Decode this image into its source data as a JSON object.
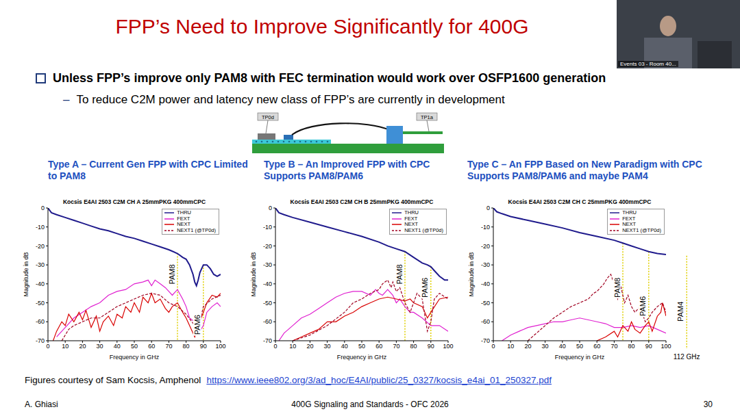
{
  "slide": {
    "title": "FPP’s Need to Improve Significantly for 400G",
    "bullet": "Unless FPP’s improve only PAM8 with FEC termination would work over OSFP1600 generation",
    "sub_bullet_marker": "–",
    "sub_bullet": "To reduce C2M power and latency new class of FPP’s are currently in development",
    "webcam_label": "Events 03 - Room 40...",
    "credit": "Figures courtesy of Sam Kocsis, Amphenol",
    "link": "https://www.ieee802.org/3/ad_hoc/E4AI/public/25_0327/kocsis_e4ai_01_250327.pdf",
    "author": "A. Ghiasi",
    "event": "400G Signaling and Standards - OFC 2026",
    "page": 30
  },
  "diagram": {
    "labels": [
      "TP0d",
      "TP1a"
    ]
  },
  "chart_data": [
    {
      "type": "line",
      "panel_title": "Type A – Current Gen FPP with CPC Limited to PAM8",
      "title": "Kocsis E4AI 2503 C2M CH A 25mmPKG 400mmCPC",
      "x_label": "Frequency in GHz",
      "y_label": "Magnitude in dB",
      "xlim": [
        0,
        100
      ],
      "xticks": [
        0,
        10,
        20,
        30,
        40,
        50,
        60,
        70,
        80,
        90,
        100
      ],
      "ylim": [
        -70,
        0
      ],
      "yticks": [
        -70,
        -60,
        -50,
        -40,
        -30,
        -20,
        -10,
        0
      ],
      "grid": false,
      "legend": "upper right",
      "series": [
        {
          "name": "THRU",
          "color": "#1f1a8c",
          "line_style": "solid",
          "x": [
            0,
            2,
            5,
            10,
            15,
            20,
            25,
            30,
            35,
            40,
            45,
            50,
            55,
            60,
            65,
            70,
            75,
            78,
            80,
            82,
            84,
            85,
            86,
            87,
            88,
            90,
            92,
            94,
            96,
            98,
            100
          ],
          "values": [
            0,
            -2.5,
            -3.5,
            -5,
            -6.5,
            -8,
            -9.5,
            -11,
            -12,
            -13.5,
            -15,
            -16,
            -17.5,
            -19,
            -20.5,
            -22,
            -24,
            -26,
            -27,
            -30,
            -35,
            -39,
            -41,
            -38,
            -34,
            -30,
            -30,
            -32,
            -35,
            -36,
            -35
          ]
        },
        {
          "name": "FEXT",
          "color": "#e020d0",
          "line_style": "solid",
          "x": [
            5,
            10,
            15,
            20,
            25,
            30,
            35,
            40,
            45,
            50,
            55,
            58,
            60,
            62,
            65,
            68,
            70,
            72,
            75,
            78,
            80,
            82,
            85,
            88,
            90,
            92,
            95,
            98,
            100
          ],
          "values": [
            -68,
            -63,
            -58,
            -55,
            -52,
            -50,
            -46,
            -44,
            -43,
            -40,
            -39,
            -38,
            -41,
            -38,
            -40,
            -42,
            -44,
            -46,
            -43,
            -48,
            -52,
            -58,
            -60,
            -65,
            -62,
            -55,
            -52,
            -50,
            -52
          ]
        },
        {
          "name": "NEXT",
          "color": "#d90000",
          "line_style": "solid",
          "x": [
            3,
            5,
            8,
            10,
            12,
            15,
            18,
            20,
            22,
            25,
            28,
            30,
            32,
            35,
            38,
            40,
            43,
            45,
            48,
            50,
            53,
            55,
            58,
            60,
            62,
            65,
            68,
            70,
            72,
            75,
            78,
            80,
            82,
            85,
            87,
            90,
            92,
            95,
            98,
            100
          ],
          "values": [
            -70,
            -65,
            -60,
            -62,
            -56,
            -60,
            -55,
            -59,
            -54,
            -63,
            -57,
            -65,
            -60,
            -57,
            -62,
            -56,
            -58,
            -52,
            -55,
            -50,
            -55,
            -47,
            -50,
            -45,
            -50,
            -48,
            -53,
            -55,
            -52,
            -50,
            -55,
            -58,
            -62,
            -68,
            -62,
            -55,
            -50,
            -46,
            -47,
            -45
          ]
        },
        {
          "name": "NEXT1 (@TP0d)",
          "color": "#a00020",
          "line_style": "dashed",
          "x": [
            8,
            12,
            15,
            20,
            25,
            30,
            35,
            40,
            45,
            50,
            55,
            60,
            65,
            70,
            75,
            80,
            85,
            88,
            90,
            95,
            100
          ],
          "values": [
            -70,
            -64,
            -62,
            -60,
            -58,
            -58,
            -55,
            -52,
            -50,
            -48,
            -46,
            -45,
            -46,
            -50,
            -52,
            -56,
            -62,
            -60,
            -52,
            -48,
            -46
          ]
        }
      ],
      "annotations": [
        {
          "label": "PAM8",
          "x": 75
        },
        {
          "label": "PAM6",
          "x": 90
        }
      ]
    },
    {
      "type": "line",
      "panel_title": "Type B – An Improved FPP with CPC Supports PAM8/PAM6",
      "title": "Kocsis E4AI 2503 C2M CH B 25mmPKG 400mmCPC",
      "x_label": "Frequency in GHz",
      "y_label": "Magnitude in dB",
      "xlim": [
        0,
        100
      ],
      "xticks": [
        0,
        10,
        20,
        30,
        40,
        50,
        60,
        70,
        80,
        90,
        100
      ],
      "ylim": [
        -70,
        0
      ],
      "yticks": [
        -70,
        -60,
        -50,
        -40,
        -30,
        -20,
        -10,
        0
      ],
      "grid": false,
      "legend": "upper right",
      "series": [
        {
          "name": "THRU",
          "color": "#1f1a8c",
          "line_style": "solid",
          "x": [
            0,
            2,
            5,
            10,
            20,
            30,
            40,
            50,
            60,
            65,
            70,
            75,
            80,
            85,
            88,
            90,
            92,
            95,
            98,
            100
          ],
          "values": [
            0,
            -2.5,
            -3.5,
            -5,
            -7.5,
            -10,
            -12.5,
            -15,
            -18,
            -20,
            -21.5,
            -23,
            -26,
            -29,
            -30,
            -31,
            -33,
            -36,
            -38,
            -38
          ]
        },
        {
          "name": "FEXT",
          "color": "#e020d0",
          "line_style": "solid",
          "x": [
            2,
            5,
            10,
            15,
            20,
            25,
            30,
            35,
            40,
            45,
            50,
            55,
            58,
            60,
            62,
            65,
            68,
            70,
            72,
            75,
            78,
            80,
            85,
            90,
            95,
            100
          ],
          "values": [
            -70,
            -66,
            -62,
            -58,
            -56,
            -53,
            -50,
            -47,
            -45,
            -44,
            -44,
            -46,
            -43,
            -45,
            -46,
            -43,
            -46,
            -50,
            -48,
            -52,
            -55,
            -55,
            -58,
            -62,
            -62,
            -65
          ]
        },
        {
          "name": "NEXT",
          "color": "#d90000",
          "line_style": "solid",
          "x": [
            10,
            15,
            20,
            25,
            30,
            35,
            40,
            45,
            50,
            55,
            60,
            65,
            70,
            75,
            78,
            80,
            85,
            88,
            90,
            95,
            100
          ],
          "values": [
            -70,
            -68,
            -66,
            -64,
            -60,
            -60,
            -57,
            -55,
            -52,
            -50,
            -48,
            -47,
            -48,
            -49,
            -48,
            -50,
            -52,
            -58,
            -55,
            -48,
            -47
          ]
        },
        {
          "name": "NEXT1 (@TP0d)",
          "color": "#a00020",
          "line_style": "dashed",
          "x": [
            10,
            20,
            30,
            40,
            45,
            50,
            55,
            60,
            62,
            65,
            67,
            68,
            70,
            72,
            75,
            78,
            80,
            82,
            85,
            88,
            90,
            92,
            95,
            100
          ],
          "values": [
            -70,
            -67,
            -62,
            -55,
            -50,
            -48,
            -45,
            -43,
            -40,
            -38,
            -42,
            -39,
            -44,
            -42,
            -50,
            -55,
            -50,
            -45,
            -48,
            -65,
            -60,
            -48,
            -45,
            -48
          ]
        }
      ],
      "annotations": [
        {
          "label": "PAM8",
          "x": 75
        },
        {
          "label": "PAM6",
          "x": 90
        }
      ]
    },
    {
      "type": "line",
      "panel_title": "Type C – An FPP Based on New Paradigm with CPC Supports PAM8/PAM6 and maybe PAM4",
      "title": "Kocsis E4AI 2503 C2M CH C 25mmPKG 400mmCPC",
      "x_label": "Frequency in GHz",
      "y_label": "Magnitude in dB",
      "xlim": [
        0,
        100
      ],
      "xticks": [
        0,
        10,
        20,
        30,
        40,
        50,
        60,
        70,
        80,
        90,
        100
      ],
      "ylim": [
        -70,
        0
      ],
      "yticks": [
        -70,
        -60,
        -50,
        -40,
        -30,
        -20,
        -10,
        0
      ],
      "grid": false,
      "legend": "upper right",
      "series": [
        {
          "name": "THRU",
          "color": "#1f1a8c",
          "line_style": "solid",
          "x": [
            0,
            2,
            5,
            10,
            20,
            30,
            40,
            50,
            60,
            70,
            75,
            80,
            85,
            90,
            95,
            100
          ],
          "values": [
            0,
            -2,
            -3,
            -4.5,
            -6.5,
            -8.5,
            -10.5,
            -13,
            -15,
            -17,
            -18.5,
            -20,
            -21.5,
            -23,
            -24,
            -24.5
          ]
        },
        {
          "name": "FEXT",
          "color": "#e020d0",
          "line_style": "solid",
          "x": [
            5,
            10,
            15,
            20,
            25,
            30,
            35,
            40,
            45,
            50,
            55,
            60,
            65,
            70,
            75,
            80,
            85,
            90,
            95,
            100
          ],
          "values": [
            -70,
            -67,
            -65,
            -63,
            -62,
            -61,
            -60,
            -60,
            -59,
            -58,
            -59,
            -60,
            -61,
            -63,
            -63,
            -62,
            -63,
            -62,
            -64,
            -66
          ]
        },
        {
          "name": "NEXT",
          "color": "#d90000",
          "line_style": "solid",
          "x": [
            60,
            65,
            70,
            72,
            75,
            78,
            80,
            82,
            85,
            88,
            90,
            92,
            95,
            97,
            98,
            100
          ],
          "values": [
            -70,
            -68,
            -65,
            -68,
            -62,
            -65,
            -60,
            -64,
            -66,
            -62,
            -60,
            -65,
            -57,
            -55,
            -50,
            -57
          ]
        },
        {
          "name": "NEXT1 (@TP0d)",
          "color": "#a00020",
          "line_style": "dashed",
          "x": [
            20,
            25,
            30,
            35,
            40,
            45,
            50,
            55,
            58,
            60,
            62,
            64,
            66,
            68,
            70,
            72,
            74,
            76,
            78,
            80,
            82,
            85,
            88,
            90,
            92,
            95,
            98,
            100
          ],
          "values": [
            -70,
            -66,
            -62,
            -58,
            -55,
            -52,
            -50,
            -48,
            -45,
            -44,
            -42,
            -40,
            -37,
            -35,
            -40,
            -48,
            -42,
            -50,
            -46,
            -52,
            -55,
            -52,
            -60,
            -58,
            -55,
            -52,
            -50,
            -55
          ]
        }
      ],
      "annotations": [
        {
          "label": "PAM8",
          "x": 75
        },
        {
          "label": "PAM6",
          "x": 90
        },
        {
          "label": "PAM4",
          "x": 112,
          "x_text": "112 GHz"
        }
      ]
    }
  ]
}
